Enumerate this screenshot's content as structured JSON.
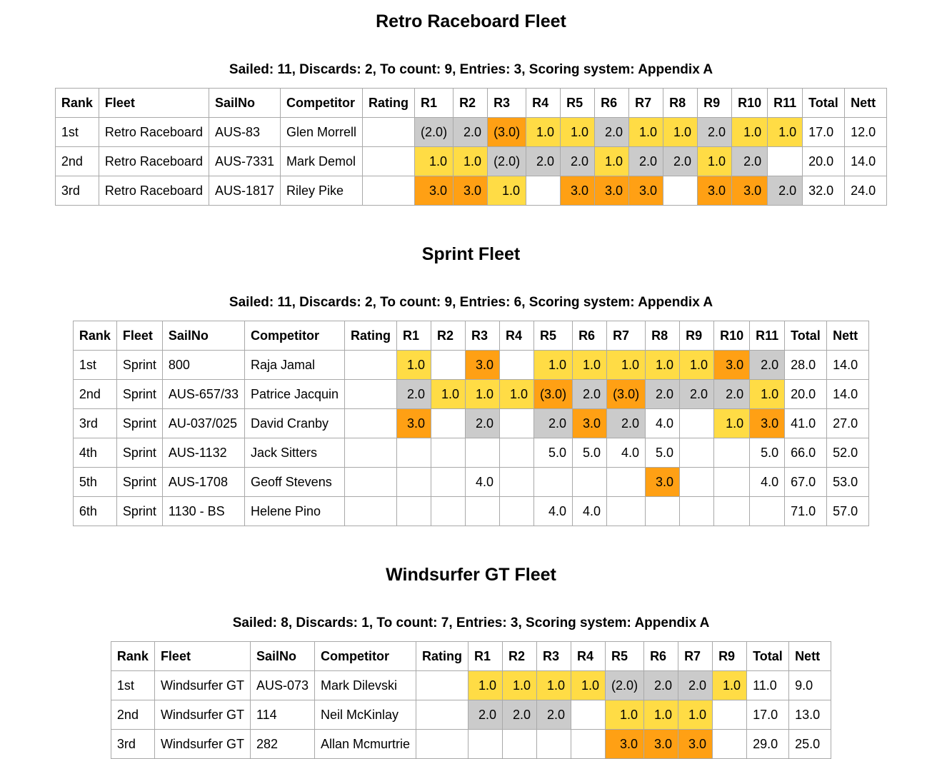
{
  "colors": {
    "place_first": "#FFDC45",
    "place_second": "#CBCBCB",
    "place_third": "#FFA014",
    "grid_border": "#A9A9A9",
    "page_background": "#FFFFFF",
    "text": "#000000"
  },
  "fleets": [
    {
      "title": "Retro Raceboard Fleet",
      "subtitle": "Sailed: 11, Discards: 2, To count: 9, Entries: 3, Scoring system: Appendix A",
      "columns": {
        "rank": "Rank",
        "fleet": "Fleet",
        "sailno": "SailNo",
        "competitor": "Competitor",
        "rating": "Rating",
        "races": [
          "R1",
          "R2",
          "R3",
          "R4",
          "R5",
          "R6",
          "R7",
          "R8",
          "R9",
          "R10",
          "R11"
        ],
        "total": "Total",
        "nett": "Nett"
      },
      "rows": [
        {
          "rank": "1st",
          "fleet": "Retro Raceboard",
          "sailno": "AUS-83",
          "competitor": "Glen Morrell",
          "rating": "",
          "races": [
            {
              "v": "(2.0)",
              "place": "second"
            },
            {
              "v": "2.0",
              "place": "second"
            },
            {
              "v": "(3.0)",
              "place": "third"
            },
            {
              "v": "1.0",
              "place": "first"
            },
            {
              "v": "1.0",
              "place": "first"
            },
            {
              "v": "2.0",
              "place": "second"
            },
            {
              "v": "1.0",
              "place": "first"
            },
            {
              "v": "1.0",
              "place": "first"
            },
            {
              "v": "2.0",
              "place": "second"
            },
            {
              "v": "1.0",
              "place": "first"
            },
            {
              "v": "1.0",
              "place": "first"
            }
          ],
          "total": "17.0",
          "nett": "12.0"
        },
        {
          "rank": "2nd",
          "fleet": "Retro Raceboard",
          "sailno": "AUS-7331",
          "competitor": "Mark Demol",
          "rating": "",
          "races": [
            {
              "v": "1.0",
              "place": "first"
            },
            {
              "v": "1.0",
              "place": "first"
            },
            {
              "v": "(2.0)",
              "place": "second"
            },
            {
              "v": "2.0",
              "place": "second"
            },
            {
              "v": "2.0",
              "place": "second"
            },
            {
              "v": "1.0",
              "place": "first"
            },
            {
              "v": "2.0",
              "place": "second"
            },
            {
              "v": "2.0",
              "place": "second"
            },
            {
              "v": "1.0",
              "place": "first"
            },
            {
              "v": "2.0",
              "place": "second"
            },
            {
              "v": "",
              "place": "none"
            }
          ],
          "total": "20.0",
          "nett": "14.0"
        },
        {
          "rank": "3rd",
          "fleet": "Retro Raceboard",
          "sailno": "AUS-1817",
          "competitor": "Riley Pike",
          "rating": "",
          "races": [
            {
              "v": "3.0",
              "place": "third"
            },
            {
              "v": "3.0",
              "place": "third"
            },
            {
              "v": "1.0",
              "place": "first"
            },
            {
              "v": "",
              "place": "none"
            },
            {
              "v": "3.0",
              "place": "third"
            },
            {
              "v": "3.0",
              "place": "third"
            },
            {
              "v": "3.0",
              "place": "third"
            },
            {
              "v": "",
              "place": "none"
            },
            {
              "v": "3.0",
              "place": "third"
            },
            {
              "v": "3.0",
              "place": "third"
            },
            {
              "v": "2.0",
              "place": "second"
            }
          ],
          "total": "32.0",
          "nett": "24.0"
        }
      ]
    },
    {
      "title": "Sprint Fleet",
      "subtitle": "Sailed: 11, Discards: 2, To count: 9, Entries: 6, Scoring system: Appendix A",
      "columns": {
        "rank": "Rank",
        "fleet": "Fleet",
        "sailno": "SailNo",
        "competitor": "Competitor",
        "rating": "Rating",
        "races": [
          "R1",
          "R2",
          "R3",
          "R4",
          "R5",
          "R6",
          "R7",
          "R8",
          "R9",
          "R10",
          "R11"
        ],
        "total": "Total",
        "nett": "Nett"
      },
      "rows": [
        {
          "rank": "1st",
          "fleet": "Sprint",
          "sailno": "800",
          "competitor": "Raja Jamal",
          "rating": "",
          "races": [
            {
              "v": "1.0",
              "place": "first"
            },
            {
              "v": "",
              "place": "none"
            },
            {
              "v": "3.0",
              "place": "third"
            },
            {
              "v": "",
              "place": "none"
            },
            {
              "v": "1.0",
              "place": "first"
            },
            {
              "v": "1.0",
              "place": "first"
            },
            {
              "v": "1.0",
              "place": "first"
            },
            {
              "v": "1.0",
              "place": "first"
            },
            {
              "v": "1.0",
              "place": "first"
            },
            {
              "v": "3.0",
              "place": "third"
            },
            {
              "v": "2.0",
              "place": "second"
            }
          ],
          "total": "28.0",
          "nett": "14.0"
        },
        {
          "rank": "2nd",
          "fleet": "Sprint",
          "sailno": "AUS-657/33",
          "competitor": "Patrice Jacquin",
          "rating": "",
          "races": [
            {
              "v": "2.0",
              "place": "second"
            },
            {
              "v": "1.0",
              "place": "first"
            },
            {
              "v": "1.0",
              "place": "first"
            },
            {
              "v": "1.0",
              "place": "first"
            },
            {
              "v": "(3.0)",
              "place": "third"
            },
            {
              "v": "2.0",
              "place": "second"
            },
            {
              "v": "(3.0)",
              "place": "third"
            },
            {
              "v": "2.0",
              "place": "second"
            },
            {
              "v": "2.0",
              "place": "second"
            },
            {
              "v": "2.0",
              "place": "second"
            },
            {
              "v": "1.0",
              "place": "first"
            }
          ],
          "total": "20.0",
          "nett": "14.0"
        },
        {
          "rank": "3rd",
          "fleet": "Sprint",
          "sailno": "AU-037/025",
          "competitor": "David Cranby",
          "rating": "",
          "races": [
            {
              "v": "3.0",
              "place": "third"
            },
            {
              "v": "",
              "place": "none"
            },
            {
              "v": "2.0",
              "place": "second"
            },
            {
              "v": "",
              "place": "none"
            },
            {
              "v": "2.0",
              "place": "second"
            },
            {
              "v": "3.0",
              "place": "third"
            },
            {
              "v": "2.0",
              "place": "second"
            },
            {
              "v": "4.0",
              "place": "none"
            },
            {
              "v": "",
              "place": "none"
            },
            {
              "v": "1.0",
              "place": "first"
            },
            {
              "v": "3.0",
              "place": "third"
            }
          ],
          "total": "41.0",
          "nett": "27.0"
        },
        {
          "rank": "4th",
          "fleet": "Sprint",
          "sailno": "AUS-1132",
          "competitor": "Jack Sitters",
          "rating": "",
          "races": [
            {
              "v": "",
              "place": "none"
            },
            {
              "v": "",
              "place": "none"
            },
            {
              "v": "",
              "place": "none"
            },
            {
              "v": "",
              "place": "none"
            },
            {
              "v": "5.0",
              "place": "none"
            },
            {
              "v": "5.0",
              "place": "none"
            },
            {
              "v": "4.0",
              "place": "none"
            },
            {
              "v": "5.0",
              "place": "none"
            },
            {
              "v": "",
              "place": "none"
            },
            {
              "v": "",
              "place": "none"
            },
            {
              "v": "5.0",
              "place": "none"
            }
          ],
          "total": "66.0",
          "nett": "52.0"
        },
        {
          "rank": "5th",
          "fleet": "Sprint",
          "sailno": "AUS-1708",
          "competitor": "Geoff Stevens",
          "rating": "",
          "races": [
            {
              "v": "",
              "place": "none"
            },
            {
              "v": "",
              "place": "none"
            },
            {
              "v": "4.0",
              "place": "none"
            },
            {
              "v": "",
              "place": "none"
            },
            {
              "v": "",
              "place": "none"
            },
            {
              "v": "",
              "place": "none"
            },
            {
              "v": "",
              "place": "none"
            },
            {
              "v": "3.0",
              "place": "third"
            },
            {
              "v": "",
              "place": "none"
            },
            {
              "v": "",
              "place": "none"
            },
            {
              "v": "4.0",
              "place": "none"
            }
          ],
          "total": "67.0",
          "nett": "53.0"
        },
        {
          "rank": "6th",
          "fleet": "Sprint",
          "sailno": "1130 - BS",
          "competitor": "Helene Pino",
          "rating": "",
          "races": [
            {
              "v": "",
              "place": "none"
            },
            {
              "v": "",
              "place": "none"
            },
            {
              "v": "",
              "place": "none"
            },
            {
              "v": "",
              "place": "none"
            },
            {
              "v": "4.0",
              "place": "none"
            },
            {
              "v": "4.0",
              "place": "none"
            },
            {
              "v": "",
              "place": "none"
            },
            {
              "v": "",
              "place": "none"
            },
            {
              "v": "",
              "place": "none"
            },
            {
              "v": "",
              "place": "none"
            },
            {
              "v": "",
              "place": "none"
            }
          ],
          "total": "71.0",
          "nett": "57.0"
        }
      ]
    },
    {
      "title": "Windsurfer GT Fleet",
      "subtitle": "Sailed: 8, Discards: 1, To count: 7, Entries: 3, Scoring system: Appendix A",
      "columns": {
        "rank": "Rank",
        "fleet": "Fleet",
        "sailno": "SailNo",
        "competitor": "Competitor",
        "rating": "Rating",
        "races": [
          "R1",
          "R2",
          "R3",
          "R4",
          "R5",
          "R6",
          "R7",
          "R9"
        ],
        "total": "Total",
        "nett": "Nett"
      },
      "rows": [
        {
          "rank": "1st",
          "fleet": "Windsurfer GT",
          "sailno": "AUS-073",
          "competitor": "Mark Dilevski",
          "rating": "",
          "races": [
            {
              "v": "1.0",
              "place": "first"
            },
            {
              "v": "1.0",
              "place": "first"
            },
            {
              "v": "1.0",
              "place": "first"
            },
            {
              "v": "1.0",
              "place": "first"
            },
            {
              "v": "(2.0)",
              "place": "second"
            },
            {
              "v": "2.0",
              "place": "second"
            },
            {
              "v": "2.0",
              "place": "second"
            },
            {
              "v": "1.0",
              "place": "first"
            }
          ],
          "total": "11.0",
          "nett": "9.0"
        },
        {
          "rank": "2nd",
          "fleet": "Windsurfer GT",
          "sailno": "114",
          "competitor": "Neil McKinlay",
          "rating": "",
          "races": [
            {
              "v": "2.0",
              "place": "second"
            },
            {
              "v": "2.0",
              "place": "second"
            },
            {
              "v": "2.0",
              "place": "second"
            },
            {
              "v": "",
              "place": "none"
            },
            {
              "v": "1.0",
              "place": "first"
            },
            {
              "v": "1.0",
              "place": "first"
            },
            {
              "v": "1.0",
              "place": "first"
            },
            {
              "v": "",
              "place": "none"
            }
          ],
          "total": "17.0",
          "nett": "13.0"
        },
        {
          "rank": "3rd",
          "fleet": "Windsurfer GT",
          "sailno": "282",
          "competitor": "Allan Mcmurtrie",
          "rating": "",
          "races": [
            {
              "v": "",
              "place": "none"
            },
            {
              "v": "",
              "place": "none"
            },
            {
              "v": "",
              "place": "none"
            },
            {
              "v": "",
              "place": "none"
            },
            {
              "v": "3.0",
              "place": "third"
            },
            {
              "v": "3.0",
              "place": "third"
            },
            {
              "v": "3.0",
              "place": "third"
            },
            {
              "v": "",
              "place": "none"
            }
          ],
          "total": "29.0",
          "nett": "25.0"
        }
      ]
    }
  ]
}
